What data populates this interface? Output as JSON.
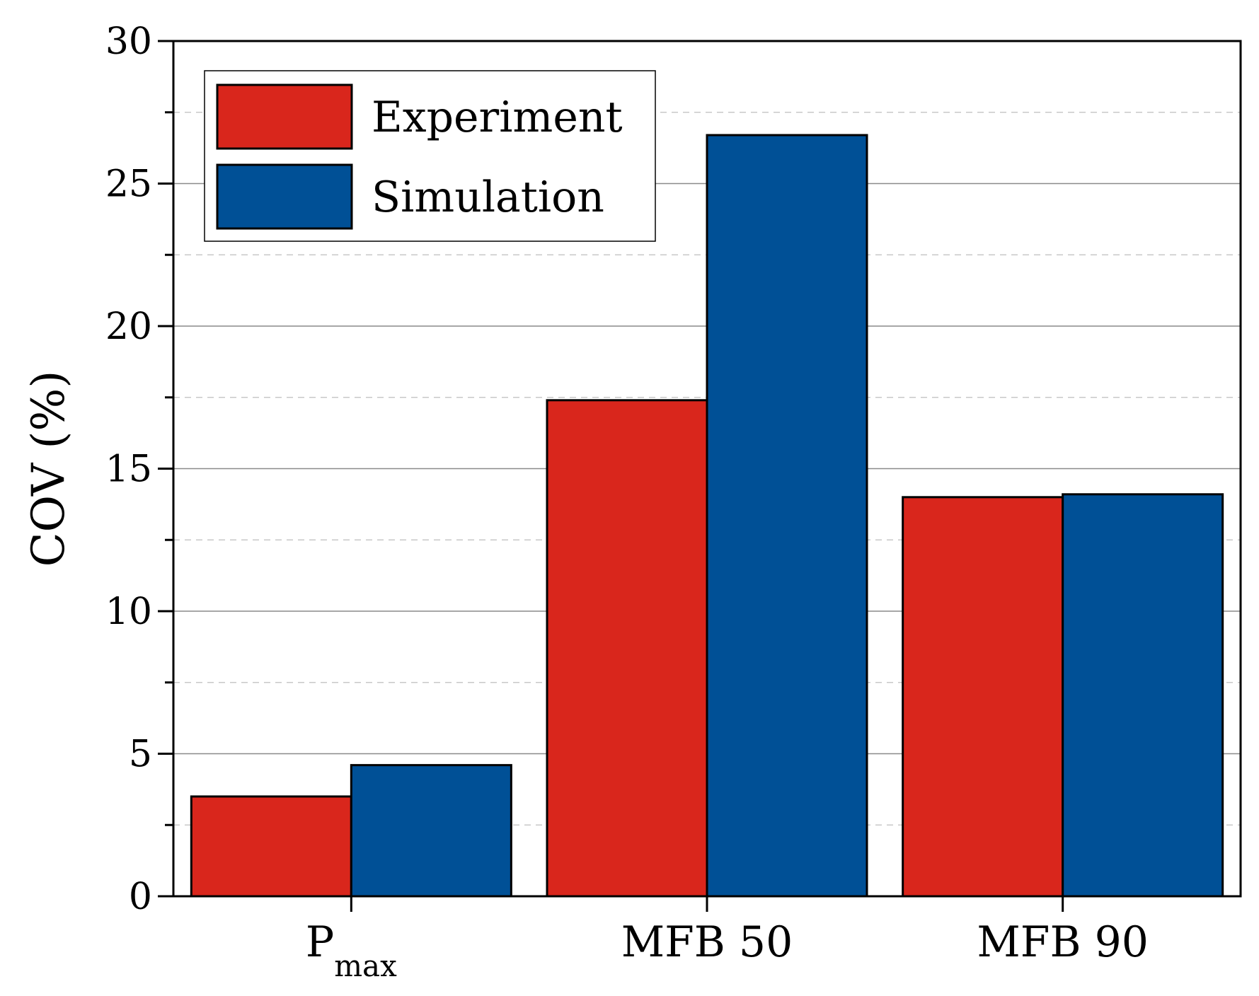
{
  "chart_data": {
    "type": "bar",
    "categories": [
      {
        "main": "P",
        "sub": "max"
      },
      {
        "main": "MFB 50",
        "sub": ""
      },
      {
        "main": "MFB 90",
        "sub": ""
      }
    ],
    "series": [
      {
        "name": "Experiment",
        "color": "#d9261c",
        "values": [
          3.5,
          17.4,
          14.0
        ]
      },
      {
        "name": "Simulation",
        "color": "#005096",
        "values": [
          4.6,
          26.7,
          14.1
        ]
      }
    ],
    "ylabel": "COV (%)",
    "xlabel": "",
    "ylim": [
      0,
      30
    ],
    "yticks": [
      0,
      5,
      10,
      15,
      20,
      25,
      30
    ],
    "minor_grid": [
      2.5,
      7.5,
      12.5,
      17.5,
      22.5,
      27.5
    ],
    "grid": true,
    "legend_position": "top-left"
  }
}
